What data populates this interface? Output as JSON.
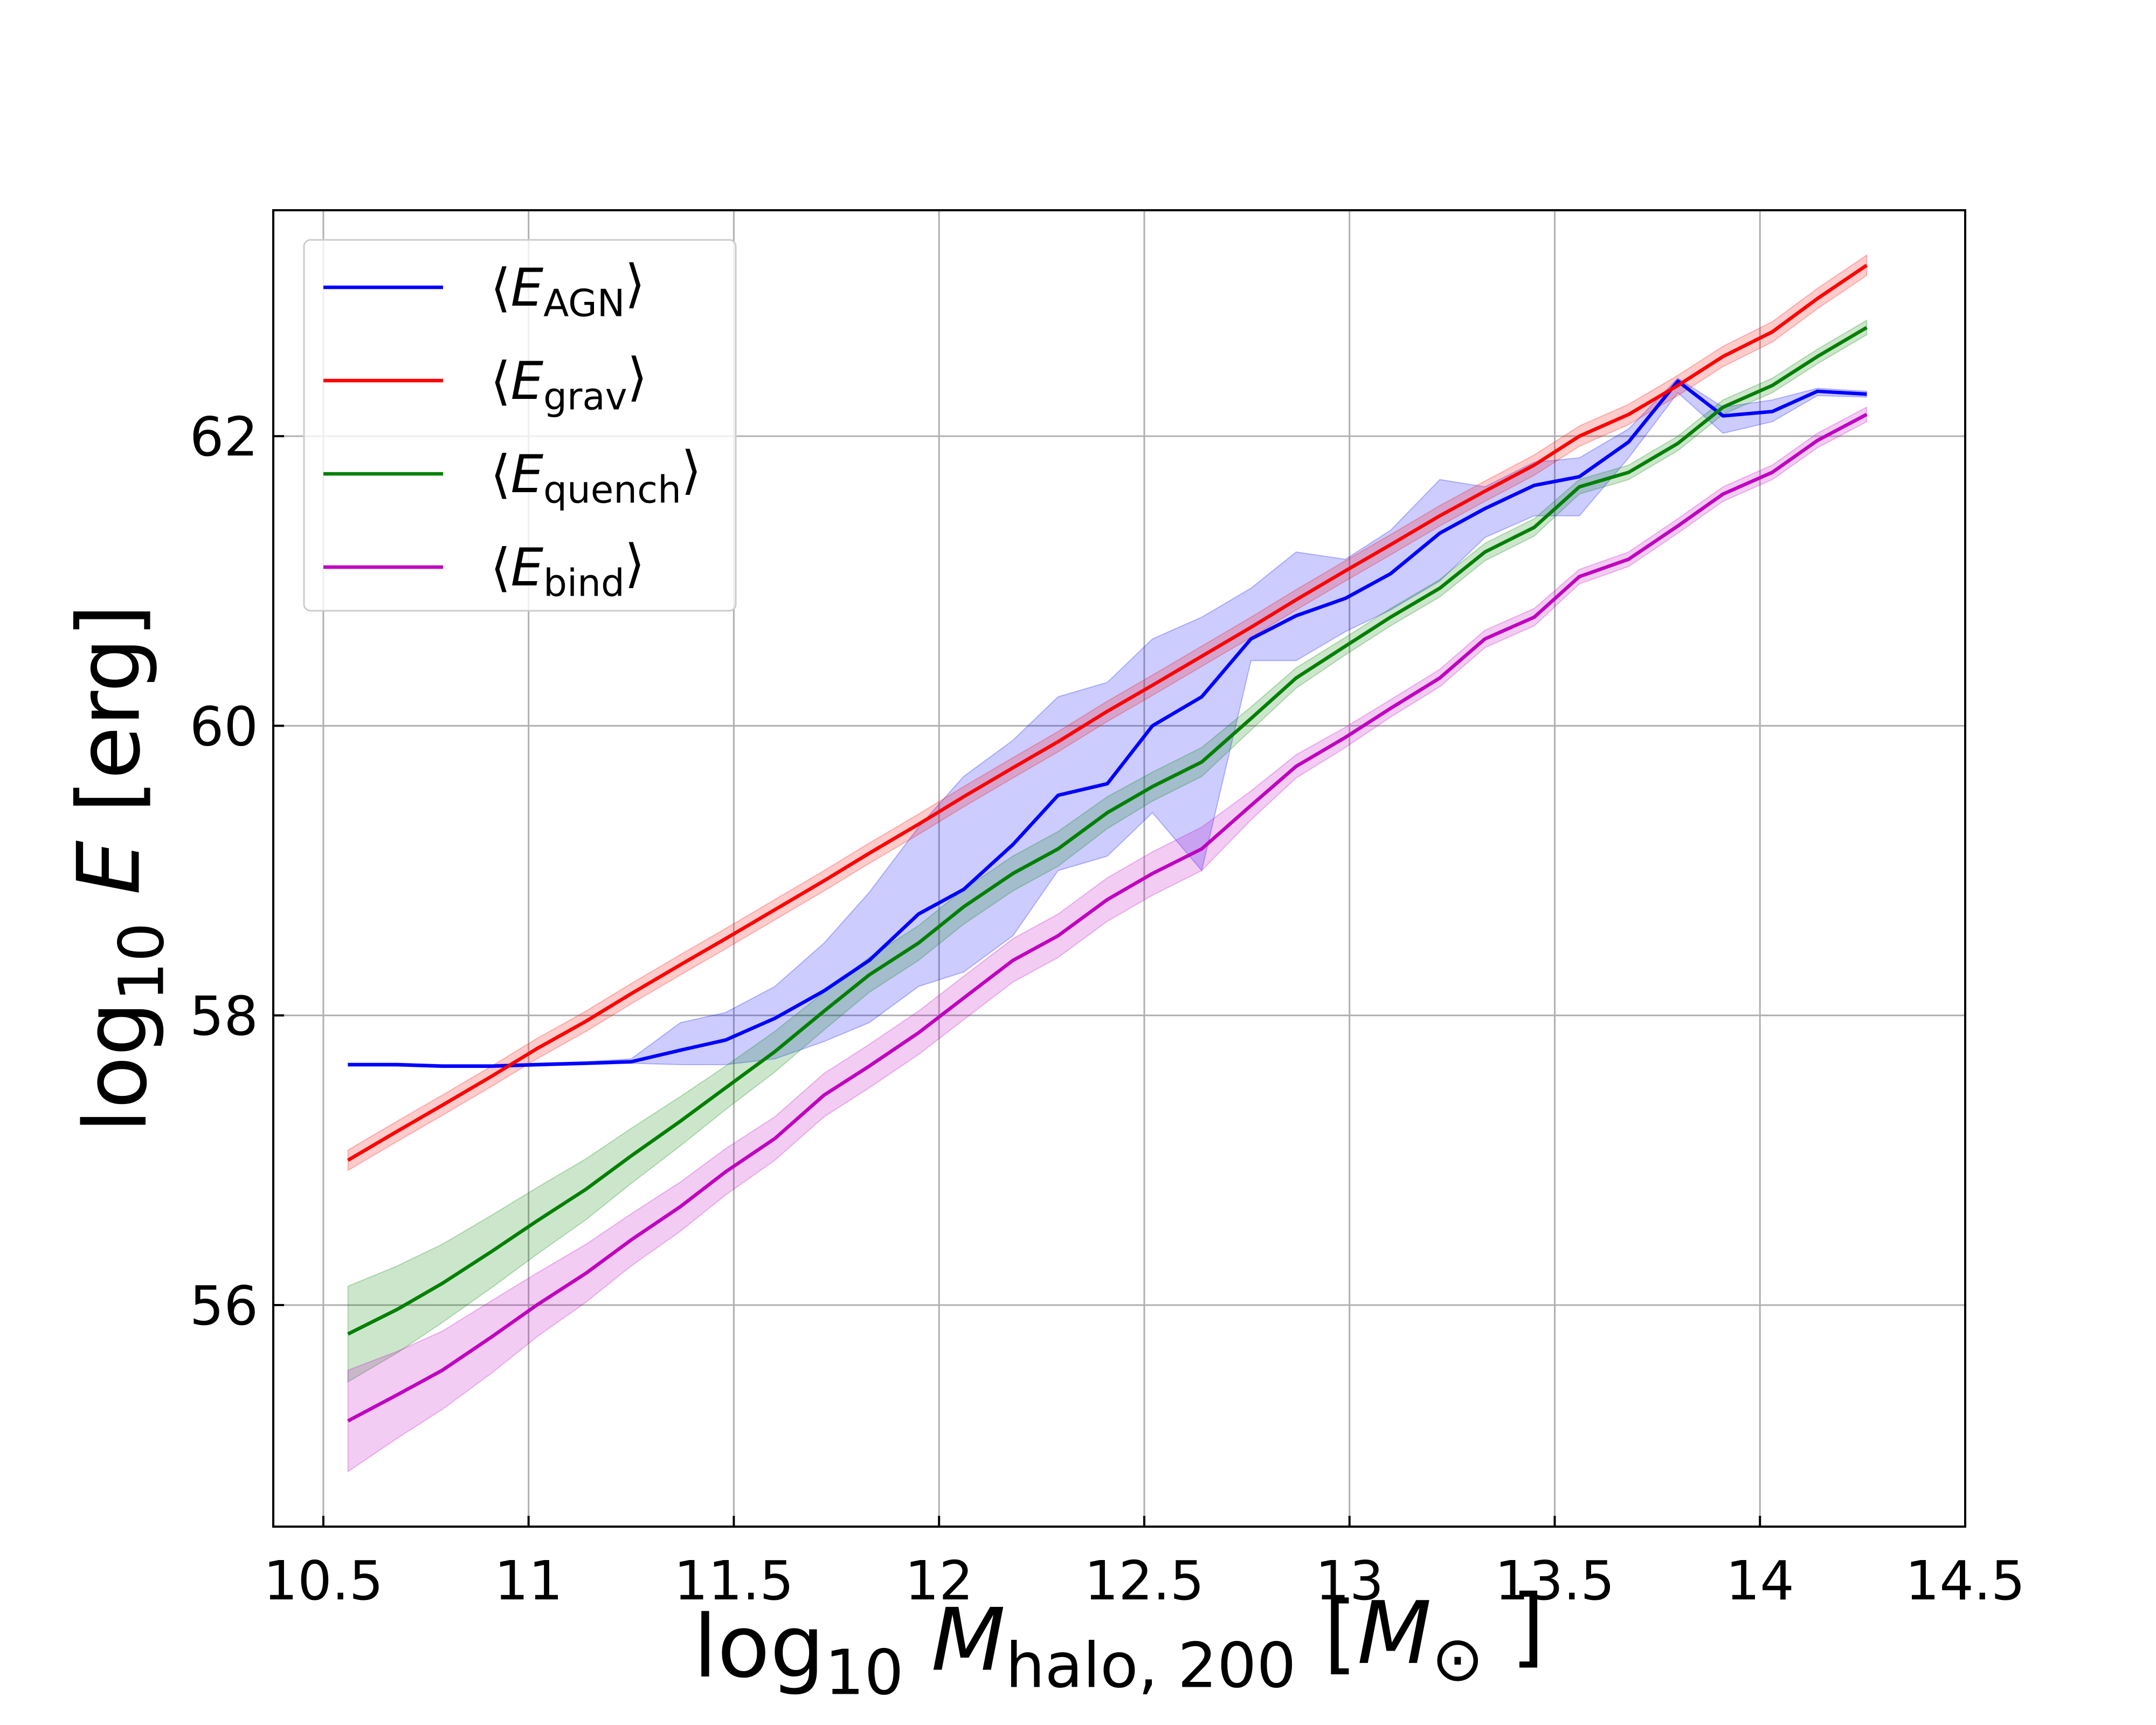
{
  "chart_data": {
    "type": "line",
    "xlabel": [
      {
        "text": "log"
      },
      {
        "text": "10",
        "sub": true
      },
      {
        "text": " "
      },
      {
        "text": "M",
        "italic": true
      },
      {
        "text": "halo, 200",
        "sub": true
      },
      {
        "text": " ["
      },
      {
        "text": "M",
        "italic": true
      },
      {
        "text": "⊙",
        "sub": true
      },
      {
        "text": " ]"
      }
    ],
    "ylabel": [
      {
        "text": "log"
      },
      {
        "text": "10",
        "sub": true
      },
      {
        "text": " "
      },
      {
        "text": "E",
        "italic": true
      },
      {
        "text": " [erg]"
      }
    ],
    "x": [
      10.56,
      10.68,
      10.79,
      10.91,
      11.02,
      11.14,
      11.25,
      11.37,
      11.48,
      11.6,
      11.72,
      11.83,
      11.95,
      12.06,
      12.18,
      12.29,
      12.41,
      12.52,
      12.64,
      12.76,
      12.87,
      12.99,
      13.1,
      13.22,
      13.33,
      13.45,
      13.56,
      13.68,
      13.8,
      13.91,
      14.03,
      14.14,
      14.26
    ],
    "series": [
      {
        "name": "⟨EAGN⟩",
        "color": "#0000ff",
        "values": [
          57.66,
          57.66,
          57.65,
          57.65,
          57.66,
          57.67,
          57.68,
          57.76,
          57.83,
          57.98,
          58.17,
          58.38,
          58.7,
          58.87,
          59.18,
          59.52,
          59.6,
          60.0,
          60.2,
          60.6,
          60.76,
          60.88,
          61.05,
          61.33,
          61.5,
          61.66,
          61.72,
          61.96,
          62.38,
          62.14,
          62.17,
          62.31,
          62.29
        ],
        "lower": [
          57.65,
          57.65,
          57.64,
          57.64,
          57.65,
          57.66,
          57.67,
          57.66,
          57.66,
          57.7,
          57.82,
          57.95,
          58.2,
          58.3,
          58.55,
          59.0,
          59.1,
          59.4,
          59.0,
          60.45,
          60.45,
          60.65,
          60.8,
          61.0,
          61.3,
          61.45,
          61.45,
          61.85,
          62.3,
          62.02,
          62.1,
          62.28,
          62.27
        ],
        "upper": [
          57.67,
          57.67,
          57.66,
          57.66,
          57.67,
          57.68,
          57.7,
          57.95,
          58.02,
          58.2,
          58.5,
          58.85,
          59.3,
          59.65,
          59.9,
          60.2,
          60.3,
          60.6,
          60.75,
          60.95,
          61.2,
          61.15,
          61.35,
          61.7,
          61.65,
          61.82,
          61.85,
          62.05,
          62.4,
          62.2,
          62.25,
          62.33,
          62.31
        ]
      },
      {
        "name": "⟨Egrav⟩",
        "color": "#ff0000",
        "values": [
          57.0,
          57.2,
          57.38,
          57.58,
          57.77,
          57.96,
          58.15,
          58.35,
          58.53,
          58.73,
          58.93,
          59.12,
          59.32,
          59.51,
          59.71,
          59.89,
          60.1,
          60.28,
          60.48,
          60.68,
          60.87,
          61.07,
          61.25,
          61.45,
          61.62,
          61.8,
          62.0,
          62.15,
          62.35,
          62.55,
          62.72,
          62.95,
          63.18
        ],
        "lower": [
          56.93,
          57.13,
          57.31,
          57.51,
          57.7,
          57.89,
          58.08,
          58.28,
          58.46,
          58.66,
          58.86,
          59.05,
          59.25,
          59.44,
          59.64,
          59.82,
          60.03,
          60.21,
          60.41,
          60.61,
          60.8,
          61.0,
          61.18,
          61.38,
          61.55,
          61.73,
          61.93,
          62.08,
          62.28,
          62.48,
          62.65,
          62.88,
          63.11
        ],
        "upper": [
          57.07,
          57.27,
          57.45,
          57.65,
          57.84,
          58.03,
          58.22,
          58.42,
          58.6,
          58.8,
          59.0,
          59.19,
          59.39,
          59.58,
          59.78,
          59.96,
          60.17,
          60.35,
          60.55,
          60.75,
          60.94,
          61.14,
          61.32,
          61.52,
          61.69,
          61.87,
          62.07,
          62.22,
          62.42,
          62.62,
          62.79,
          63.02,
          63.25
        ]
      },
      {
        "name": "⟨Equench⟩",
        "color": "#008000",
        "values": [
          55.8,
          55.97,
          56.15,
          56.37,
          56.58,
          56.8,
          57.03,
          57.27,
          57.5,
          57.75,
          58.03,
          58.28,
          58.5,
          58.75,
          58.98,
          59.15,
          59.4,
          59.58,
          59.75,
          60.05,
          60.33,
          60.55,
          60.75,
          60.95,
          61.2,
          61.37,
          61.65,
          61.75,
          61.95,
          62.2,
          62.35,
          62.55,
          62.75
        ],
        "lower": [
          55.47,
          55.67,
          55.88,
          56.12,
          56.35,
          56.59,
          56.84,
          57.1,
          57.35,
          57.61,
          57.9,
          58.16,
          58.38,
          58.63,
          58.86,
          59.03,
          59.29,
          59.48,
          59.65,
          59.97,
          60.26,
          60.49,
          60.69,
          60.89,
          61.14,
          61.31,
          61.6,
          61.7,
          61.9,
          62.15,
          62.3,
          62.5,
          62.7
        ],
        "upper": [
          56.13,
          56.27,
          56.42,
          56.62,
          56.81,
          57.01,
          57.22,
          57.44,
          57.65,
          57.89,
          58.16,
          58.4,
          58.62,
          58.87,
          59.1,
          59.27,
          59.51,
          59.68,
          59.85,
          60.13,
          60.4,
          60.61,
          60.81,
          61.01,
          61.26,
          61.43,
          61.7,
          61.8,
          62.0,
          62.25,
          62.4,
          62.6,
          62.8
        ]
      },
      {
        "name": "⟨Ebind⟩",
        "color": "#bf00bf",
        "values": [
          55.2,
          55.38,
          55.55,
          55.78,
          56.0,
          56.22,
          56.45,
          56.68,
          56.92,
          57.15,
          57.45,
          57.65,
          57.88,
          58.12,
          58.38,
          58.55,
          58.8,
          58.98,
          59.15,
          59.45,
          59.72,
          59.92,
          60.12,
          60.33,
          60.6,
          60.75,
          61.03,
          61.15,
          61.38,
          61.6,
          61.75,
          61.97,
          62.15
        ],
        "lower": [
          54.85,
          55.08,
          55.28,
          55.53,
          55.78,
          56.02,
          56.27,
          56.51,
          56.76,
          57.0,
          57.3,
          57.5,
          57.73,
          57.97,
          58.23,
          58.4,
          58.65,
          58.83,
          59.0,
          59.35,
          59.64,
          59.85,
          60.06,
          60.27,
          60.54,
          60.69,
          60.98,
          61.1,
          61.33,
          61.55,
          61.7,
          61.92,
          62.1
        ],
        "upper": [
          55.55,
          55.68,
          55.82,
          56.03,
          56.22,
          56.42,
          56.63,
          56.85,
          57.08,
          57.3,
          57.6,
          57.8,
          58.03,
          58.27,
          58.53,
          58.7,
          58.95,
          59.13,
          59.3,
          59.55,
          59.8,
          59.99,
          60.18,
          60.39,
          60.66,
          60.81,
          61.08,
          61.2,
          61.43,
          61.65,
          61.8,
          62.02,
          62.2
        ]
      }
    ],
    "xlim": [
      10.378,
      14.5
    ],
    "ylim": [
      54.47,
      63.56
    ],
    "xticks": [
      10.5,
      11,
      11.5,
      12,
      12.5,
      13,
      13.5,
      14,
      14.5
    ],
    "yticks": [
      56,
      58,
      60,
      62
    ],
    "grid": true,
    "legend": "upper left"
  }
}
